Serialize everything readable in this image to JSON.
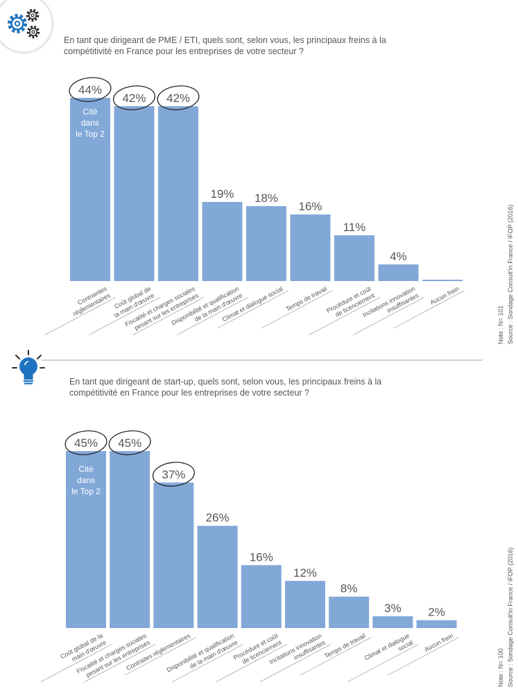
{
  "colors": {
    "bar": "#82a8d8",
    "text": "#555555",
    "baseline": "#999999",
    "icon_blue": "#1e73be",
    "circle": "#222222",
    "divider": "#aaaaaa"
  },
  "icons": [
    "gears-icon",
    "lightbulb-icon"
  ],
  "charts": [
    {
      "question": [
        "En tant que dirigeant de PME / ETI, quels sont, selon vous, les principaux freins à la",
        "compétitivité en France pour les entreprises de votre secteur ?"
      ],
      "note": "Note : N= 101",
      "source": "Source : Sondage Consult'in France / IFOP (2016)"
    },
    {
      "question": [
        "En tant que dirigeant de start-up, quels sont, selon vous, les principaux freins à la",
        "compétitivité en France pour les entreprises de votre secteur ?"
      ],
      "note": "Note : N= 100",
      "source": "Source : Sondage Consult'in France / IFOP (2016)"
    }
  ],
  "chart_data": [
    {
      "type": "bar",
      "unit": "%",
      "categories": [
        [
          "Contraintes",
          "réglementaires"
        ],
        [
          "Coût global de",
          "la main d'œuvre"
        ],
        [
          "Fiscalité et charges sociales",
          "pesant sur les entreprises"
        ],
        [
          "Disponibilité et qualification",
          "de la main d'œuvre"
        ],
        [
          "Climat et dialogue social"
        ],
        [
          "Temps de travail"
        ],
        [
          "Procédure et coût",
          "de licenciement"
        ],
        [
          "Incitations innovation",
          "insuffisantes"
        ],
        [
          "Aucun frein"
        ]
      ],
      "values": [
        44,
        42,
        42,
        19,
        18,
        16,
        11,
        4,
        0
      ],
      "value_labels": [
        "44%",
        "42%",
        "42%",
        "19%",
        "18%",
        "16%",
        "11%",
        "4%",
        ""
      ],
      "highlight": [
        "Cité",
        "dans",
        "le Top 2"
      ],
      "highlighted_count": 3,
      "ylim": [
        0,
        44
      ]
    },
    {
      "type": "bar",
      "unit": "%",
      "categories": [
        [
          "Coût global de la",
          "main d'œuvre"
        ],
        [
          "Fiscalité et charges sociales",
          "pesant sur les entreprises"
        ],
        [
          "Contraites réglementaires"
        ],
        [
          "Disponibilité et qualification",
          "de la main d'œuvre"
        ],
        [
          "Procédure et coût",
          "de licenciement"
        ],
        [
          "Incitations innovation",
          "insuffisantes"
        ],
        [
          "Temps de travail"
        ],
        [
          "Climat et dialogue",
          "social"
        ],
        [
          "Aucun frein"
        ]
      ],
      "values": [
        45,
        45,
        37,
        26,
        16,
        12,
        8,
        3,
        2
      ],
      "value_labels": [
        "45%",
        "45%",
        "37%",
        "26%",
        "16%",
        "12%",
        "8%",
        "3%",
        "2%"
      ],
      "highlight": [
        "Cité",
        "dans",
        "le Top 2"
      ],
      "highlighted_count": 3,
      "ylim": [
        0,
        45
      ]
    }
  ]
}
